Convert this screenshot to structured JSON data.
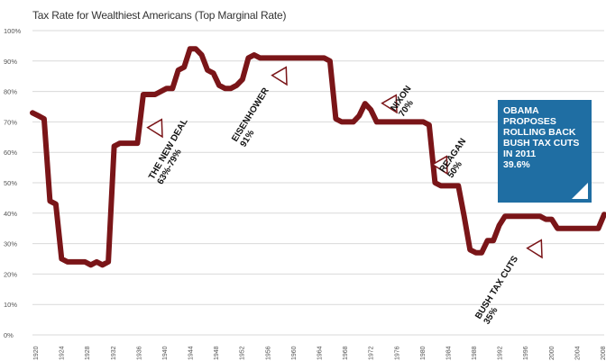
{
  "chart_data": {
    "type": "line",
    "title": "Tax Rate for Wealthiest Americans (Top Marginal Rate)",
    "ylim": [
      0,
      100
    ],
    "grid": true,
    "colors": {
      "line": "#7a1518",
      "grid": "#d9d9d9",
      "callout_bg": "#1f6ea3",
      "marker": "#7a1518"
    },
    "y_ticks": [
      "0%",
      "10%",
      "20%",
      "30%",
      "40%",
      "50%",
      "60%",
      "70%",
      "80%",
      "90%",
      "100%"
    ],
    "x_ticks": [
      "1920",
      "1924",
      "1928",
      "1932",
      "1936",
      "1940",
      "1944",
      "1948",
      "1952",
      "1956",
      "1960",
      "1964",
      "1968",
      "1972",
      "1976",
      "1980",
      "1984",
      "1988",
      "1992",
      "1996",
      "2000",
      "2004",
      "2008"
    ],
    "series": [
      {
        "values": [
          [
            1913,
            73
          ],
          [
            1914,
            72
          ],
          [
            1915,
            71
          ],
          [
            1916,
            44
          ],
          [
            1917,
            43
          ],
          [
            1918,
            25
          ],
          [
            1919,
            24
          ],
          [
            1920,
            24
          ],
          [
            1921,
            24
          ],
          [
            1922,
            24
          ],
          [
            1923,
            23
          ],
          [
            1924,
            24
          ],
          [
            1925,
            23
          ],
          [
            1926,
            24
          ],
          [
            1927,
            62
          ],
          [
            1928,
            63
          ],
          [
            1929,
            63
          ],
          [
            1930,
            63
          ],
          [
            1931,
            63
          ],
          [
            1932,
            79
          ],
          [
            1933,
            79
          ],
          [
            1934,
            79
          ],
          [
            1935,
            80
          ],
          [
            1936,
            81
          ],
          [
            1937,
            81
          ],
          [
            1938,
            87
          ],
          [
            1939,
            88
          ],
          [
            1940,
            94
          ],
          [
            1941,
            94
          ],
          [
            1942,
            92
          ],
          [
            1943,
            87
          ],
          [
            1944,
            86
          ],
          [
            1945,
            82
          ],
          [
            1946,
            81
          ],
          [
            1947,
            81
          ],
          [
            1948,
            82
          ],
          [
            1949,
            84
          ],
          [
            1950,
            91
          ],
          [
            1951,
            92
          ],
          [
            1952,
            91
          ],
          [
            1953,
            91
          ],
          [
            1954,
            91
          ],
          [
            1955,
            91
          ],
          [
            1956,
            91
          ],
          [
            1957,
            91
          ],
          [
            1958,
            91
          ],
          [
            1959,
            91
          ],
          [
            1960,
            91
          ],
          [
            1961,
            91
          ],
          [
            1962,
            91
          ],
          [
            1963,
            91
          ],
          [
            1964,
            90
          ],
          [
            1965,
            71
          ],
          [
            1966,
            70
          ],
          [
            1967,
            70
          ],
          [
            1968,
            70
          ],
          [
            1969,
            72
          ],
          [
            1970,
            76
          ],
          [
            1971,
            74
          ],
          [
            1972,
            70
          ],
          [
            1973,
            70
          ],
          [
            1974,
            70
          ],
          [
            1975,
            70
          ],
          [
            1976,
            70
          ],
          [
            1977,
            70
          ],
          [
            1978,
            70
          ],
          [
            1979,
            70
          ],
          [
            1980,
            70
          ],
          [
            1981,
            69
          ],
          [
            1982,
            50
          ],
          [
            1983,
            49
          ],
          [
            1984,
            49
          ],
          [
            1985,
            49
          ],
          [
            1986,
            49
          ],
          [
            1987,
            39
          ],
          [
            1988,
            28
          ],
          [
            1989,
            27
          ],
          [
            1990,
            27
          ],
          [
            1991,
            31
          ],
          [
            1992,
            31
          ],
          [
            1993,
            36
          ],
          [
            1994,
            39
          ],
          [
            1995,
            39
          ],
          [
            1996,
            39
          ],
          [
            1997,
            39
          ],
          [
            1998,
            39
          ],
          [
            1999,
            39
          ],
          [
            2000,
            39
          ],
          [
            2001,
            38
          ],
          [
            2002,
            38
          ],
          [
            2003,
            35
          ],
          [
            2004,
            35
          ],
          [
            2005,
            35
          ],
          [
            2006,
            35
          ],
          [
            2007,
            35
          ],
          [
            2008,
            35
          ],
          [
            2009,
            35
          ],
          [
            2010,
            35
          ],
          [
            2011,
            39.6
          ]
        ]
      }
    ],
    "annotations": [
      {
        "lines": [
          "THE NEW DEAL",
          "63%-79%"
        ],
        "x": 1935
      },
      {
        "lines": [
          "EISENHOWER",
          "91%"
        ],
        "x": 1958
      },
      {
        "lines": [
          "NIXON",
          "70%"
        ],
        "x": 1973
      },
      {
        "lines": [
          "REAGAN",
          "50%"
        ],
        "x": 1985
      },
      {
        "lines": [
          "BUSH TAX CUTS",
          "35%"
        ],
        "x": 2003
      }
    ],
    "callout": {
      "lines": [
        "OBAMA",
        "PROPOSES",
        "ROLLING BACK",
        "BUSH TAX CUTS",
        "IN 2011",
        "39.6%"
      ]
    }
  }
}
